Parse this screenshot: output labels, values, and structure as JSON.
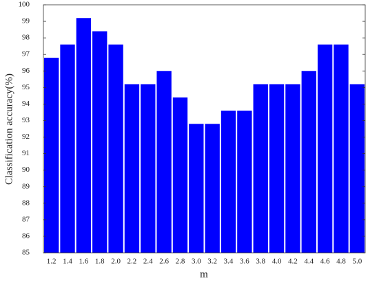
{
  "chart_data": {
    "type": "bar",
    "categories": [
      "1.2",
      "1.4",
      "1.6",
      "1.8",
      "2.0",
      "2.2",
      "2.4",
      "2.6",
      "2.8",
      "3.0",
      "3.2",
      "3.4",
      "3.6",
      "3.8",
      "4.0",
      "4.2",
      "4.4",
      "4.6",
      "4.8",
      "5.0"
    ],
    "values": [
      96.8,
      97.6,
      99.2,
      98.4,
      97.6,
      95.2,
      95.2,
      96.0,
      94.4,
      92.8,
      92.8,
      93.6,
      93.6,
      95.2,
      95.2,
      95.2,
      96.0,
      97.6,
      97.6,
      95.2
    ],
    "color": "#0000ff",
    "x_label": "m",
    "y_label": "Classification accuracy(%)",
    "ylim": [
      85,
      100
    ],
    "yticks": [
      85,
      86,
      87,
      88,
      89,
      90,
      91,
      92,
      93,
      94,
      95,
      96,
      97,
      98,
      99,
      100
    ]
  }
}
